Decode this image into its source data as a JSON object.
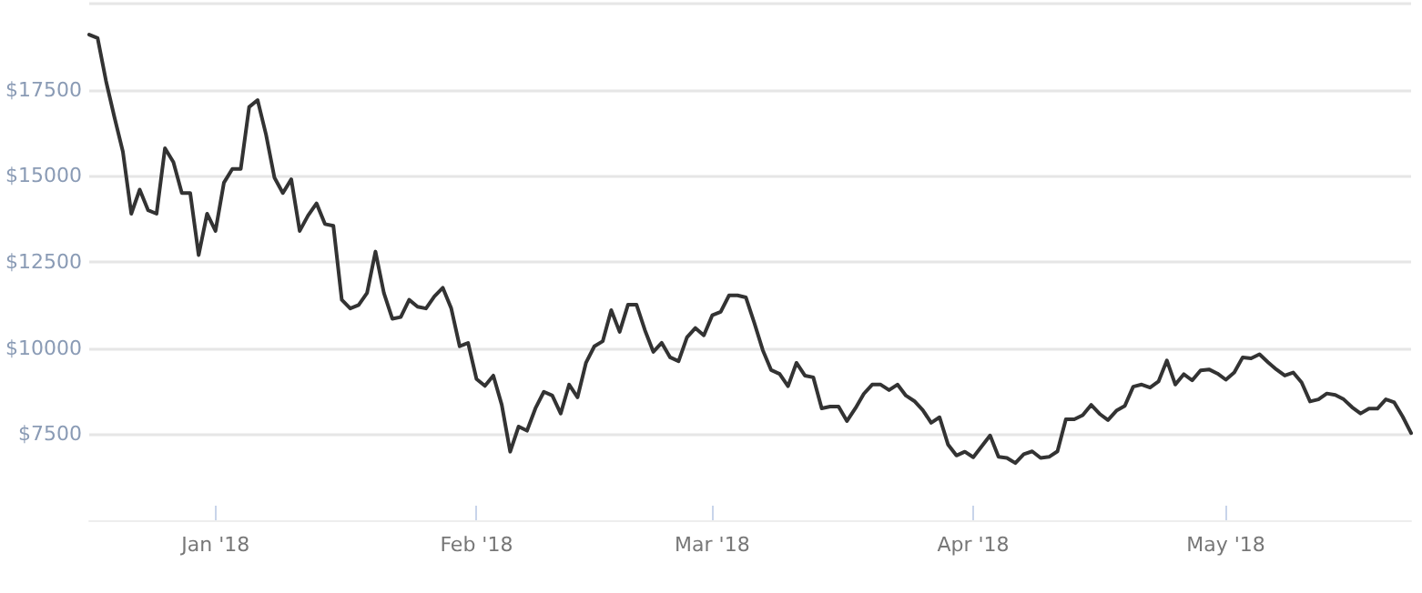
{
  "chart_data": {
    "type": "line",
    "marker": "none",
    "line_style": "solid",
    "grid": "y",
    "x": [
      "2017-12-17",
      "2017-12-18",
      "2017-12-19",
      "2017-12-20",
      "2017-12-21",
      "2017-12-22",
      "2017-12-23",
      "2017-12-24",
      "2017-12-25",
      "2017-12-26",
      "2017-12-27",
      "2017-12-28",
      "2017-12-29",
      "2017-12-30",
      "2017-12-31",
      "2018-01-01",
      "2018-01-02",
      "2018-01-03",
      "2018-01-04",
      "2018-01-05",
      "2018-01-06",
      "2018-01-07",
      "2018-01-08",
      "2018-01-09",
      "2018-01-10",
      "2018-01-11",
      "2018-01-12",
      "2018-01-13",
      "2018-01-14",
      "2018-01-15",
      "2018-01-16",
      "2018-01-17",
      "2018-01-18",
      "2018-01-19",
      "2018-01-20",
      "2018-01-21",
      "2018-01-22",
      "2018-01-23",
      "2018-01-24",
      "2018-01-25",
      "2018-01-26",
      "2018-01-27",
      "2018-01-28",
      "2018-01-29",
      "2018-01-30",
      "2018-01-31",
      "2018-02-01",
      "2018-02-02",
      "2018-02-03",
      "2018-02-04",
      "2018-02-05",
      "2018-02-06",
      "2018-02-07",
      "2018-02-08",
      "2018-02-09",
      "2018-02-10",
      "2018-02-11",
      "2018-02-12",
      "2018-02-13",
      "2018-02-14",
      "2018-02-15",
      "2018-02-16",
      "2018-02-17",
      "2018-02-18",
      "2018-02-19",
      "2018-02-20",
      "2018-02-21",
      "2018-02-22",
      "2018-02-23",
      "2018-02-24",
      "2018-02-25",
      "2018-02-26",
      "2018-02-27",
      "2018-02-28",
      "2018-03-01",
      "2018-03-02",
      "2018-03-03",
      "2018-03-04",
      "2018-03-05",
      "2018-03-06",
      "2018-03-07",
      "2018-03-08",
      "2018-03-09",
      "2018-03-10",
      "2018-03-11",
      "2018-03-12",
      "2018-03-13",
      "2018-03-14",
      "2018-03-15",
      "2018-03-16",
      "2018-03-17",
      "2018-03-18",
      "2018-03-19",
      "2018-03-20",
      "2018-03-21",
      "2018-03-22",
      "2018-03-23",
      "2018-03-24",
      "2018-03-25",
      "2018-03-26",
      "2018-03-27",
      "2018-03-28",
      "2018-03-29",
      "2018-03-30",
      "2018-03-31",
      "2018-04-01",
      "2018-04-03",
      "2018-04-04",
      "2018-04-05",
      "2018-04-06",
      "2018-04-07",
      "2018-04-08",
      "2018-04-09",
      "2018-04-10",
      "2018-04-11",
      "2018-04-12",
      "2018-04-13",
      "2018-04-14",
      "2018-04-15",
      "2018-04-16",
      "2018-04-17",
      "2018-04-18",
      "2018-04-19",
      "2018-04-20",
      "2018-04-21",
      "2018-04-22",
      "2018-04-23",
      "2018-04-24",
      "2018-04-25",
      "2018-04-26",
      "2018-04-27",
      "2018-04-28",
      "2018-04-29",
      "2018-04-30",
      "2018-05-01",
      "2018-05-02",
      "2018-05-03",
      "2018-05-04",
      "2018-05-05",
      "2018-05-06",
      "2018-05-07",
      "2018-05-08",
      "2018-05-09",
      "2018-05-10",
      "2018-05-11",
      "2018-05-12",
      "2018-05-13",
      "2018-05-14",
      "2018-05-15",
      "2018-05-16",
      "2018-05-17",
      "2018-05-18",
      "2018-05-19",
      "2018-05-20",
      "2018-05-21",
      "2018-05-22",
      "2018-05-23"
    ],
    "series": [
      {
        "color": "#333333",
        "values": [
          19100,
          19000,
          17750,
          16700,
          15700,
          13900,
          14600,
          14000,
          13900,
          15800,
          15400,
          14500,
          14500,
          12700,
          13900,
          13400,
          14800,
          15200,
          15200,
          17000,
          17200,
          16200,
          14950,
          14500,
          14900,
          13400,
          13850,
          14200,
          13600,
          13550,
          11400,
          11150,
          11250,
          11600,
          12800,
          11600,
          10850,
          10900,
          11400,
          11200,
          11150,
          11500,
          11750,
          11150,
          10050,
          10150,
          9100,
          8900,
          9200,
          8350,
          6990,
          7720,
          7600,
          8250,
          8730,
          8620,
          8100,
          8940,
          8570,
          9570,
          10050,
          10200,
          11100,
          10470,
          11260,
          11260,
          10520,
          9890,
          10150,
          9730,
          9620,
          10310,
          10580,
          10370,
          10950,
          11050,
          11530,
          11530,
          11470,
          10730,
          9940,
          9360,
          9250,
          8890,
          9570,
          9200,
          9150,
          8250,
          8300,
          8300,
          7880,
          8250,
          8670,
          8940,
          8940,
          8780,
          8940,
          8620,
          8460,
          8200,
          7830,
          7990,
          7200,
          6880,
          6990,
          6830,
          7460,
          6840,
          6810,
          6660,
          6920,
          7000,
          6810,
          6840,
          7000,
          7930,
          7930,
          8050,
          8350,
          8090,
          7910,
          8180,
          8320,
          8880,
          8940,
          8850,
          9030,
          9640,
          8940,
          9240,
          9060,
          9350,
          9380,
          9260,
          9080,
          9290,
          9730,
          9700,
          9820,
          9590,
          9380,
          9200,
          9290,
          9000,
          8450,
          8510,
          8680,
          8640,
          8510,
          8280,
          8100,
          8240,
          8240,
          8510,
          8420,
          8010,
          7530
        ]
      }
    ],
    "xlim": [
      "2017-12-17",
      "2018-05-23"
    ],
    "xticks": [
      {
        "value": "2018-01-01",
        "label": "Jan '18"
      },
      {
        "value": "2018-02-01",
        "label": "Feb '18"
      },
      {
        "value": "2018-03-01",
        "label": "Mar '18"
      },
      {
        "value": "2018-04-01",
        "label": "Apr '18"
      },
      {
        "value": "2018-05-01",
        "label": "May '18"
      }
    ],
    "ylim": [
      5000,
      20000
    ],
    "yticks": [
      {
        "value": 7500,
        "label": "$7500"
      },
      {
        "value": 10000,
        "label": "$10000"
      },
      {
        "value": 12500,
        "label": "$12500"
      },
      {
        "value": 15000,
        "label": "$15000"
      },
      {
        "value": 17500,
        "label": "$17500"
      },
      {
        "value": 20000,
        "label": null
      }
    ]
  }
}
